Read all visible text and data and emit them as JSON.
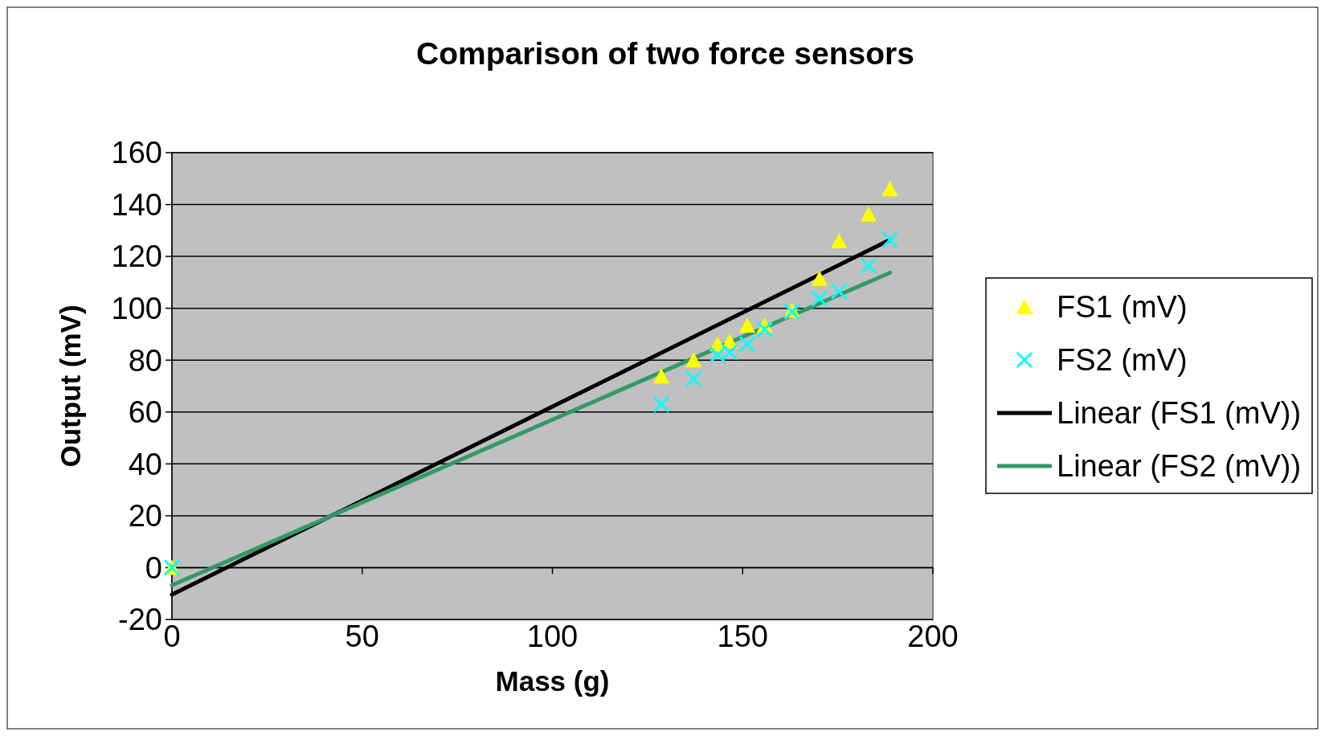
{
  "chart_data": {
    "type": "scatter",
    "title": "Comparison of two force sensors",
    "xlabel": "Mass (g)",
    "ylabel": "Output (mV)",
    "xlim": [
      0,
      200
    ],
    "xticks": [
      0,
      50,
      100,
      150,
      200
    ],
    "ylim": [
      -20,
      160
    ],
    "yticks": [
      -20,
      0,
      20,
      40,
      60,
      80,
      100,
      120,
      140,
      160
    ],
    "grid": "y",
    "legend": "right",
    "series": [
      {
        "name": "FS1 (mV)",
        "marker": "triangle",
        "color": "#ffff00",
        "x": [
          0,
          128.6,
          137.1,
          143.4,
          146.6,
          151.2,
          155.8,
          163.0,
          170.2,
          175.3,
          183.1,
          188.7
        ],
        "values": [
          0,
          73.8,
          80.0,
          86.2,
          87.2,
          93.4,
          93.4,
          99.1,
          111.4,
          125.9,
          136.2,
          146.0
        ]
      },
      {
        "name": "FS2 (mV)",
        "marker": "cross",
        "color": "#00ffff",
        "x": [
          0,
          128.6,
          137.1,
          143.4,
          146.6,
          151.2,
          155.8,
          163.0,
          170.2,
          175.3,
          183.1,
          188.7
        ],
        "values": [
          0,
          62.9,
          72.7,
          82.0,
          83.0,
          86.2,
          91.8,
          98.6,
          103.7,
          106.5,
          116.4,
          126.4
        ]
      },
      {
        "name": "Linear (FS1 (mV))",
        "type": "line",
        "marker": "none",
        "color": "#000000",
        "x": [
          0,
          188.7
        ],
        "values": [
          -10.4,
          126.4
        ]
      },
      {
        "name": "Linear (FS2 (mV))",
        "type": "line",
        "marker": "none",
        "color": "#339966",
        "x": [
          0,
          188.7
        ],
        "values": [
          -6.8,
          113.7
        ]
      }
    ]
  }
}
